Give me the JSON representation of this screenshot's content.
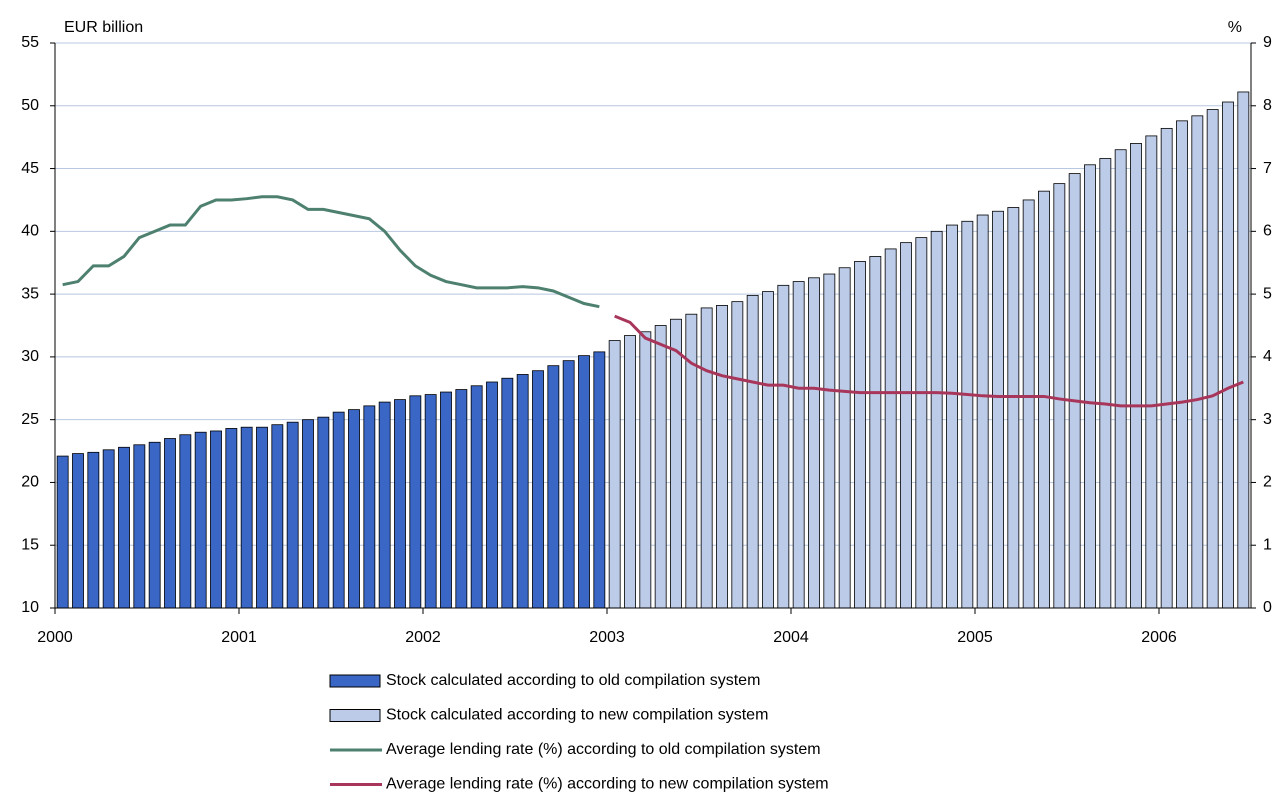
{
  "chart_data": {
    "type": "bar-line",
    "y_label": "EUR billion",
    "y2_label": "%",
    "categories": [
      "2000",
      null,
      null,
      null,
      null,
      null,
      null,
      null,
      null,
      null,
      null,
      null,
      "2001",
      null,
      null,
      null,
      null,
      null,
      null,
      null,
      null,
      null,
      null,
      null,
      "2002",
      null,
      null,
      null,
      null,
      null,
      null,
      null,
      null,
      null,
      null,
      null,
      "2003",
      null,
      null,
      null,
      null,
      null,
      null,
      null,
      null,
      null,
      null,
      null,
      "2004",
      null,
      null,
      null,
      null,
      null,
      null,
      null,
      null,
      null,
      null,
      null,
      "2005",
      null,
      null,
      null,
      null,
      null,
      null,
      null,
      null,
      null,
      null,
      null,
      "2006",
      null,
      null,
      null,
      null,
      null
    ],
    "series": [
      {
        "name": "Stock calculated according to old compilation system",
        "kind": "bar",
        "color": "#3a66c6",
        "values": [
          22.1,
          22.3,
          22.4,
          22.6,
          22.8,
          23.0,
          23.2,
          23.5,
          23.8,
          24.0,
          24.1,
          24.3,
          24.4,
          24.4,
          24.6,
          24.8,
          25.0,
          25.2,
          25.6,
          25.8,
          26.1,
          26.4,
          26.6,
          26.9,
          27.0,
          27.2,
          27.4,
          27.7,
          28.0,
          28.3,
          28.6,
          28.9,
          29.3,
          29.7,
          30.1,
          30.4,
          null,
          null,
          null,
          null,
          null,
          null,
          null,
          null,
          null,
          null,
          null,
          null,
          null,
          null,
          null,
          null,
          null,
          null,
          null,
          null,
          null,
          null,
          null,
          null,
          null,
          null,
          null,
          null,
          null,
          null,
          null,
          null,
          null,
          null,
          null,
          null,
          null,
          null,
          null,
          null,
          null,
          null
        ]
      },
      {
        "name": "Stock calculated according to new compilation system",
        "kind": "bar",
        "color": "#bccce8",
        "values": [
          null,
          null,
          null,
          null,
          null,
          null,
          null,
          null,
          null,
          null,
          null,
          null,
          null,
          null,
          null,
          null,
          null,
          null,
          null,
          null,
          null,
          null,
          null,
          null,
          null,
          null,
          null,
          null,
          null,
          null,
          null,
          null,
          null,
          null,
          null,
          null,
          31.3,
          31.7,
          32.0,
          32.5,
          33.0,
          33.4,
          33.9,
          34.1,
          34.4,
          34.9,
          35.2,
          35.7,
          36.0,
          36.3,
          36.6,
          37.1,
          37.6,
          38.0,
          38.6,
          39.1,
          39.5,
          40.0,
          40.5,
          40.8,
          41.3,
          41.6,
          41.9,
          42.5,
          43.2,
          43.8,
          44.6,
          45.3,
          45.8,
          46.5,
          47.0,
          47.6,
          48.2,
          48.8,
          49.2,
          49.7,
          50.3,
          51.1
        ]
      },
      {
        "name": "Average lending rate (%) according to old compilation system",
        "kind": "line",
        "axis": "y2",
        "color": "#4e8070",
        "values": [
          5.15,
          5.2,
          5.45,
          5.45,
          5.6,
          5.9,
          6.0,
          6.1,
          6.1,
          6.4,
          6.5,
          6.5,
          6.52,
          6.55,
          6.55,
          6.5,
          6.35,
          6.35,
          6.3,
          6.25,
          6.2,
          6.0,
          5.7,
          5.45,
          5.3,
          5.2,
          5.15,
          5.1,
          5.1,
          5.1,
          5.12,
          5.1,
          5.05,
          4.95,
          4.85,
          4.8,
          null,
          null,
          null,
          null,
          null,
          null,
          null,
          null,
          null,
          null,
          null,
          null,
          null,
          null,
          null,
          null,
          null,
          null,
          null,
          null,
          null,
          null,
          null,
          null,
          null,
          null,
          null,
          null,
          null,
          null,
          null,
          null,
          null,
          null,
          null,
          null,
          null,
          null,
          null,
          null,
          null,
          null
        ]
      },
      {
        "name": "Average lending rate (%) according to new compilation system",
        "kind": "line",
        "axis": "y2",
        "color": "#a8365a",
        "values": [
          null,
          null,
          null,
          null,
          null,
          null,
          null,
          null,
          null,
          null,
          null,
          null,
          null,
          null,
          null,
          null,
          null,
          null,
          null,
          null,
          null,
          null,
          null,
          null,
          null,
          null,
          null,
          null,
          null,
          null,
          null,
          null,
          null,
          null,
          null,
          null,
          4.65,
          4.55,
          4.3,
          4.2,
          4.1,
          3.9,
          3.78,
          3.7,
          3.65,
          3.6,
          3.55,
          3.55,
          3.5,
          3.5,
          3.47,
          3.45,
          3.43,
          3.43,
          3.43,
          3.43,
          3.43,
          3.43,
          3.42,
          3.4,
          3.38,
          3.37,
          3.37,
          3.37,
          3.37,
          3.33,
          3.3,
          3.27,
          3.25,
          3.22,
          3.22,
          3.22,
          3.25,
          3.28,
          3.32,
          3.38,
          3.5,
          3.6
        ]
      }
    ],
    "ylim": [
      10,
      55
    ],
    "yticks": [
      10,
      15,
      20,
      25,
      30,
      35,
      40,
      45,
      50,
      55
    ],
    "y2lim": [
      0,
      9
    ],
    "y2ticks": [
      0,
      1,
      2,
      3,
      4,
      5,
      6,
      7,
      8,
      9
    ],
    "grid": true,
    "legend": "bottom"
  }
}
